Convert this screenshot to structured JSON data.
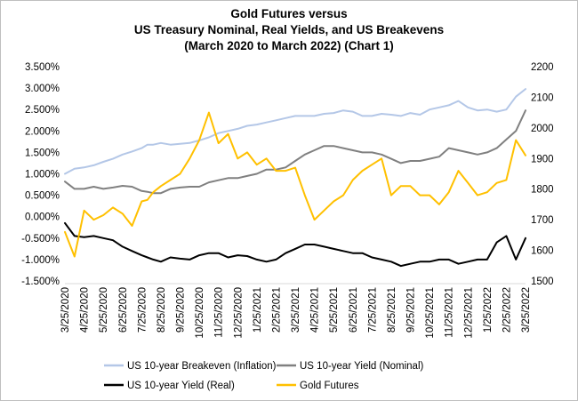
{
  "chart_data": {
    "type": "line",
    "title": [
      "Gold Futures versus",
      "US Treasury Nominal, Real Yields, and US Breakevens",
      "(March 2020 to March 2022) (Chart 1)"
    ],
    "x_tick_labels": [
      "3/25/2020",
      "4/25/2020",
      "5/25/2020",
      "6/25/2020",
      "7/25/2020",
      "8/25/2020",
      "9/25/2020",
      "10/25/2020",
      "11/25/2020",
      "12/25/2020",
      "1/25/2021",
      "2/25/2021",
      "3/25/2021",
      "4/25/2021",
      "5/25/2021",
      "6/25/2021",
      "7/25/2021",
      "8/25/2021",
      "9/25/2021",
      "10/25/2021",
      "11/25/2021",
      "12/25/2021",
      "1/25/2022",
      "2/25/2022",
      "3/25/2022"
    ],
    "y_left": {
      "ylim": [
        -1.5,
        3.5
      ],
      "tick_values": [
        -1.5,
        -1.0,
        -0.5,
        0.0,
        0.5,
        1.0,
        1.5,
        2.0,
        2.5,
        3.0,
        3.5
      ],
      "tick_labels": [
        "-1.500%",
        "-1.000%",
        "-0.500%",
        "0.000%",
        "0.500%",
        "1.000%",
        "1.500%",
        "2.000%",
        "2.500%",
        "3.000%",
        "3.500%"
      ]
    },
    "y_right": {
      "ylim": [
        1500,
        2200
      ],
      "tick_values": [
        1500,
        1600,
        1700,
        1800,
        1900,
        2000,
        2100,
        2200
      ],
      "tick_labels": [
        "1500",
        "1600",
        "1700",
        "1800",
        "1900",
        "2000",
        "2100",
        "2200"
      ]
    },
    "x_month_index": [
      0,
      0.5,
      1,
      1.5,
      2,
      2.5,
      3,
      3.5,
      4,
      4.3,
      4.6,
      5,
      5.5,
      6,
      6.5,
      7,
      7.5,
      8,
      8.5,
      9,
      9.5,
      10,
      10.5,
      11,
      11.5,
      12,
      12.5,
      13,
      13.5,
      14,
      14.5,
      15,
      15.5,
      16,
      16.5,
      17,
      17.5,
      18,
      18.5,
      19,
      19.5,
      20,
      20.5,
      21,
      21.5,
      22,
      22.5,
      23,
      23.5,
      24
    ],
    "series": [
      {
        "name": "US 10-year Breakeven (Inflation)",
        "axis": "left",
        "color": "#b4c7e7",
        "width": 2,
        "values": [
          1.0,
          1.12,
          1.15,
          1.2,
          1.28,
          1.35,
          1.45,
          1.52,
          1.6,
          1.68,
          1.68,
          1.72,
          1.68,
          1.7,
          1.72,
          1.78,
          1.85,
          1.95,
          2.0,
          2.05,
          2.12,
          2.15,
          2.2,
          2.25,
          2.3,
          2.35,
          2.35,
          2.35,
          2.4,
          2.42,
          2.48,
          2.45,
          2.35,
          2.35,
          2.4,
          2.38,
          2.35,
          2.42,
          2.38,
          2.5,
          2.55,
          2.6,
          2.7,
          2.55,
          2.48,
          2.5,
          2.45,
          2.5,
          2.8,
          2.98
        ]
      },
      {
        "name": "US 10-year Yield (Nominal)",
        "axis": "left",
        "color": "#808080",
        "width": 2,
        "values": [
          0.82,
          0.65,
          0.65,
          0.7,
          0.65,
          0.68,
          0.72,
          0.7,
          0.6,
          0.58,
          0.55,
          0.55,
          0.65,
          0.68,
          0.7,
          0.7,
          0.8,
          0.85,
          0.9,
          0.9,
          0.95,
          1.0,
          1.1,
          1.1,
          1.15,
          1.3,
          1.45,
          1.55,
          1.65,
          1.65,
          1.6,
          1.55,
          1.5,
          1.5,
          1.45,
          1.35,
          1.25,
          1.3,
          1.3,
          1.35,
          1.4,
          1.6,
          1.55,
          1.5,
          1.45,
          1.5,
          1.6,
          1.8,
          2.0,
          2.48
        ]
      },
      {
        "name": "US 10-year Yield (Real)",
        "axis": "left",
        "color": "#000000",
        "width": 2,
        "values": [
          -0.15,
          -0.45,
          -0.48,
          -0.45,
          -0.5,
          -0.55,
          -0.7,
          -0.8,
          -0.9,
          -0.95,
          -1.0,
          -1.05,
          -0.95,
          -0.98,
          -1.0,
          -0.9,
          -0.85,
          -0.85,
          -0.95,
          -0.9,
          -0.92,
          -1.0,
          -1.05,
          -1.0,
          -0.85,
          -0.75,
          -0.65,
          -0.65,
          -0.7,
          -0.75,
          -0.8,
          -0.85,
          -0.85,
          -0.95,
          -1.0,
          -1.05,
          -1.15,
          -1.1,
          -1.05,
          -1.05,
          -1.0,
          -1.0,
          -1.1,
          -1.05,
          -1.0,
          -1.0,
          -0.6,
          -0.45,
          -1.0,
          -0.5
        ]
      },
      {
        "name": "Gold Futures",
        "axis": "right",
        "color": "#ffc000",
        "width": 2,
        "values": [
          1660,
          1580,
          1730,
          1700,
          1715,
          1740,
          1720,
          1680,
          1760,
          1765,
          1790,
          1810,
          1830,
          1850,
          1900,
          1960,
          2050,
          1950,
          1980,
          1900,
          1920,
          1880,
          1900,
          1860,
          1860,
          1870,
          1780,
          1700,
          1730,
          1760,
          1780,
          1830,
          1860,
          1880,
          1900,
          1780,
          1810,
          1810,
          1780,
          1780,
          1750,
          1790,
          1860,
          1820,
          1780,
          1790,
          1820,
          1830,
          1960,
          1910
        ]
      }
    ],
    "legend": [
      "US 10-year Breakeven (Inflation)",
      "US 10-year Yield (Nominal)",
      "US 10-year Yield (Real)",
      "Gold Futures"
    ],
    "legend_position": "bottom",
    "grid": false
  }
}
